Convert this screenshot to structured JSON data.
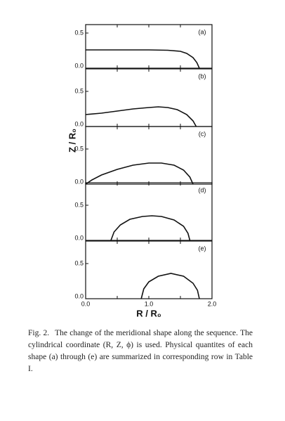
{
  "chart_data": [
    {
      "type": "line",
      "annotation": "(a)",
      "ylim": [
        0,
        0.62
      ],
      "yticks": [
        {
          "value": 0,
          "label": "0.0"
        },
        0.5
      ],
      "xlim": [
        0,
        2
      ],
      "xticks": [
        0,
        0.5,
        1,
        1.5,
        2
      ],
      "series": [
        {
          "color": "#111111",
          "x": [
            0,
            0.5,
            1.0,
            1.3,
            1.5,
            1.6,
            1.7,
            1.76,
            1.8
          ],
          "values": [
            0.26,
            0.26,
            0.26,
            0.255,
            0.24,
            0.21,
            0.15,
            0.08,
            0
          ]
        }
      ]
    },
    {
      "type": "line",
      "annotation": "(b)",
      "ylim": [
        0,
        0.82
      ],
      "yticks": [
        {
          "value": 0,
          "label": "0.0"
        },
        0.5
      ],
      "xlim": [
        0,
        2
      ],
      "xticks": [
        0,
        0.5,
        1,
        1.5,
        2
      ],
      "series": [
        {
          "color": "#111111",
          "x": [
            0,
            0.25,
            0.5,
            0.75,
            1.0,
            1.15,
            1.3,
            1.45,
            1.6,
            1.7,
            1.75
          ],
          "values": [
            0.17,
            0.19,
            0.22,
            0.25,
            0.27,
            0.28,
            0.27,
            0.24,
            0.17,
            0.08,
            0
          ]
        }
      ]
    },
    {
      "type": "line",
      "annotation": "(c)",
      "ylabel": "Z / R₀",
      "ylim": [
        0,
        0.82
      ],
      "yticks": [
        {
          "value": 0,
          "label": "0.0"
        },
        0.5
      ],
      "xlim": [
        0,
        2
      ],
      "xticks": [
        0,
        0.5,
        1,
        1.5,
        2
      ],
      "series": [
        {
          "color": "#111111",
          "x": [
            0,
            0.1,
            0.25,
            0.5,
            0.75,
            1.0,
            1.2,
            1.4,
            1.55,
            1.65,
            1.7
          ],
          "values": [
            0,
            0.06,
            0.13,
            0.21,
            0.27,
            0.3,
            0.3,
            0.27,
            0.2,
            0.1,
            0
          ]
        }
      ]
    },
    {
      "type": "line",
      "annotation": "(d)",
      "ylim": [
        0,
        0.82
      ],
      "yticks": [
        {
          "value": 0,
          "label": "0.0"
        },
        0.5
      ],
      "xlim": [
        0,
        2
      ],
      "xticks": [
        0,
        0.5,
        1,
        1.5,
        2
      ],
      "series": [
        {
          "color": "#111111",
          "x": [
            0.4,
            0.45,
            0.55,
            0.7,
            0.9,
            1.05,
            1.2,
            1.4,
            1.55,
            1.62,
            1.65
          ],
          "values": [
            0,
            0.12,
            0.22,
            0.3,
            0.34,
            0.35,
            0.34,
            0.29,
            0.2,
            0.1,
            0
          ]
        }
      ]
    },
    {
      "type": "line",
      "annotation": "(e)",
      "xlabel": "R / R₀",
      "ylim": [
        0,
        0.82
      ],
      "yticks": [
        {
          "value": 0,
          "label": "0.0"
        },
        0.5
      ],
      "xlim": [
        0,
        2
      ],
      "xticks": [
        {
          "value": 0,
          "label": "0.0"
        },
        0.5,
        {
          "value": 1,
          "label": "1.0"
        },
        1.5,
        {
          "value": 2,
          "label": "2.0"
        }
      ],
      "series": [
        {
          "color": "#111111",
          "x": [
            0.88,
            0.92,
            1.0,
            1.15,
            1.35,
            1.55,
            1.7,
            1.77,
            1.8
          ],
          "values": [
            0,
            0.14,
            0.24,
            0.32,
            0.36,
            0.32,
            0.22,
            0.12,
            0
          ]
        }
      ]
    }
  ],
  "caption": {
    "label": "Fig. 2.",
    "text": "The change of the meridional shape along the sequence. The cylindrical coordinate (R, Z, ϕ) is used. Physical quantites of each shape (a) through (e) are summarized in corresponding row in Table I."
  }
}
